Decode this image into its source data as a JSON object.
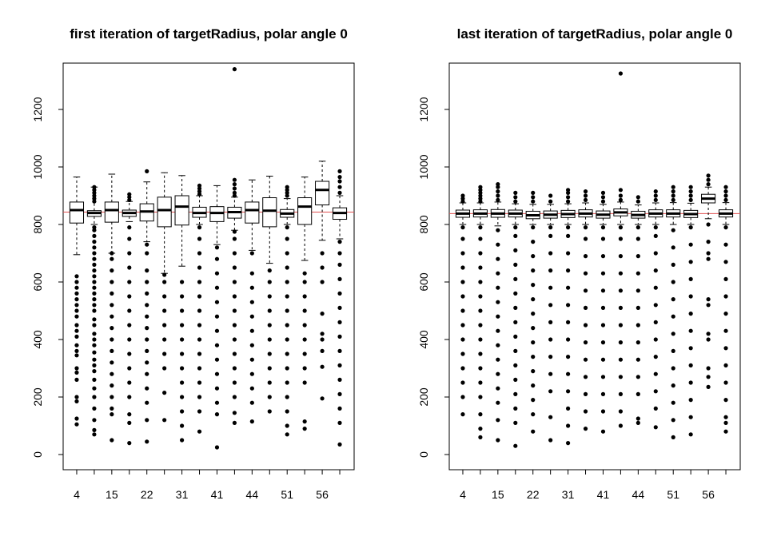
{
  "chart_data": [
    {
      "type": "boxplot",
      "title": "first iteration of targetRadius, polar angle 0",
      "xlabel": "",
      "ylabel": "",
      "ylim": [
        0,
        1350
      ],
      "yticks": [
        0,
        200,
        400,
        600,
        800,
        1000,
        1200
      ],
      "categories": [
        "4",
        "",
        "15",
        "",
        "22",
        "",
        "31",
        "",
        "41",
        "",
        "44",
        "",
        "51",
        "",
        "56",
        ""
      ],
      "xtick_labels": [
        "4",
        "15",
        "22",
        "31",
        "41",
        "44",
        "51",
        "56"
      ],
      "reference_line": {
        "y": 843,
        "color": "#e05050"
      },
      "boxes": [
        {
          "min": 695,
          "q1": 805,
          "median": 850,
          "q3": 878,
          "max": 965,
          "outliers": [
            105,
            125,
            185,
            200,
            260,
            285,
            300,
            345,
            360,
            380,
            410,
            430,
            450,
            480,
            500,
            520,
            540,
            560,
            580,
            600,
            620
          ]
        },
        {
          "min": 800,
          "q1": 828,
          "median": 840,
          "q3": 848,
          "max": 930,
          "outliers": [
            70,
            85,
            120,
            160,
            200,
            230,
            260,
            290,
            310,
            330,
            355,
            380,
            400,
            420,
            450,
            470,
            500,
            520,
            540,
            560,
            580,
            600,
            620,
            640,
            660,
            680,
            700,
            720,
            740,
            760,
            780,
            790,
            880,
            890,
            900,
            910,
            920,
            930
          ]
        },
        {
          "min": 700,
          "q1": 808,
          "median": 850,
          "q3": 878,
          "max": 975,
          "outliers": [
            50,
            140,
            160,
            200,
            240,
            280,
            320,
            360,
            400,
            440,
            480,
            520,
            560,
            600,
            640,
            680,
            700
          ]
        },
        {
          "min": 810,
          "q1": 828,
          "median": 840,
          "q3": 850,
          "max": 880,
          "outliers": [
            40,
            110,
            140,
            200,
            250,
            300,
            350,
            400,
            450,
            500,
            550,
            600,
            650,
            700,
            750,
            790,
            885,
            895,
            905
          ]
        },
        {
          "min": 740,
          "q1": 812,
          "median": 845,
          "q3": 872,
          "max": 948,
          "outliers": [
            45,
            120,
            180,
            230,
            280,
            320,
            360,
            400,
            440,
            480,
            520,
            560,
            600,
            640,
            700,
            730,
            985
          ]
        },
        {
          "min": 630,
          "q1": 792,
          "median": 850,
          "q3": 895,
          "max": 980,
          "outliers": [
            120,
            215,
            300,
            350,
            400,
            450,
            500,
            550,
            600,
            625
          ]
        },
        {
          "min": 655,
          "q1": 798,
          "median": 862,
          "q3": 900,
          "max": 970,
          "outliers": [
            50,
            100,
            150,
            200,
            250,
            300,
            350,
            400,
            450,
            500,
            550,
            600
          ]
        },
        {
          "min": 800,
          "q1": 825,
          "median": 840,
          "q3": 860,
          "max": 900,
          "outliers": [
            80,
            150,
            200,
            250,
            300,
            350,
            400,
            450,
            500,
            550,
            600,
            650,
            700,
            750,
            790,
            905,
            915,
            925,
            935
          ]
        },
        {
          "min": 730,
          "q1": 810,
          "median": 840,
          "q3": 862,
          "max": 935,
          "outliers": [
            25,
            140,
            180,
            230,
            280,
            330,
            380,
            430,
            480,
            530,
            580,
            630,
            680,
            720
          ]
        },
        {
          "min": 780,
          "q1": 822,
          "median": 843,
          "q3": 860,
          "max": 895,
          "outliers": [
            110,
            145,
            200,
            250,
            300,
            350,
            400,
            450,
            500,
            550,
            600,
            650,
            700,
            750,
            775,
            900,
            910,
            925,
            940,
            955,
            1340
          ]
        },
        {
          "min": 710,
          "q1": 805,
          "median": 850,
          "q3": 878,
          "max": 955,
          "outliers": [
            115,
            180,
            230,
            280,
            330,
            380,
            430,
            480,
            530,
            580,
            630,
            700
          ]
        },
        {
          "min": 665,
          "q1": 792,
          "median": 848,
          "q3": 893,
          "max": 968,
          "outliers": [
            150,
            200,
            250,
            300,
            350,
            400,
            450,
            500,
            550,
            600,
            640
          ]
        },
        {
          "min": 800,
          "q1": 825,
          "median": 838,
          "q3": 852,
          "max": 890,
          "outliers": [
            70,
            100,
            150,
            200,
            250,
            300,
            350,
            400,
            450,
            500,
            550,
            600,
            650,
            700,
            750,
            790,
            900,
            910,
            920,
            930
          ]
        },
        {
          "min": 675,
          "q1": 800,
          "median": 862,
          "q3": 893,
          "max": 965,
          "outliers": [
            90,
            115,
            250,
            300,
            350,
            400,
            450,
            500,
            550,
            600,
            630
          ]
        },
        {
          "min": 745,
          "q1": 868,
          "median": 920,
          "q3": 950,
          "max": 1020,
          "outliers": [
            195,
            305,
            360,
            400,
            420,
            490,
            600,
            650,
            700
          ]
        },
        {
          "min": 750,
          "q1": 818,
          "median": 840,
          "q3": 858,
          "max": 900,
          "outliers": [
            35,
            110,
            160,
            210,
            260,
            310,
            360,
            410,
            460,
            510,
            560,
            610,
            660,
            700,
            740,
            910,
            930,
            950,
            965,
            985
          ]
        }
      ]
    },
    {
      "type": "boxplot",
      "title": "last iteration of targetRadius, polar angle 0",
      "xlabel": "",
      "ylabel": "",
      "ylim": [
        0,
        1350
      ],
      "yticks": [
        0,
        200,
        400,
        600,
        800,
        1000,
        1200
      ],
      "categories": [
        "4",
        "",
        "15",
        "",
        "22",
        "",
        "31",
        "",
        "41",
        "",
        "44",
        "",
        "51",
        "",
        "56",
        ""
      ],
      "xtick_labels": [
        "4",
        "15",
        "22",
        "31",
        "41",
        "44",
        "51",
        "56"
      ],
      "reference_line": {
        "y": 838,
        "color": "#e05050"
      },
      "boxes": [
        {
          "min": 800,
          "q1": 825,
          "median": 838,
          "q3": 850,
          "max": 875,
          "outliers": [
            140,
            200,
            250,
            300,
            350,
            400,
            450,
            500,
            550,
            600,
            650,
            700,
            750,
            790,
            880,
            890,
            900
          ]
        },
        {
          "min": 800,
          "q1": 826,
          "median": 838,
          "q3": 851,
          "max": 875,
          "outliers": [
            60,
            90,
            140,
            200,
            250,
            300,
            350,
            400,
            450,
            500,
            550,
            600,
            650,
            700,
            750,
            790,
            880,
            890,
            900,
            910,
            920,
            930
          ]
        },
        {
          "min": 795,
          "q1": 825,
          "median": 838,
          "q3": 852,
          "max": 878,
          "outliers": [
            50,
            120,
            180,
            230,
            280,
            330,
            380,
            430,
            480,
            530,
            580,
            630,
            680,
            730,
            780,
            885,
            900,
            915,
            930,
            940
          ]
        },
        {
          "min": 800,
          "q1": 826,
          "median": 838,
          "q3": 850,
          "max": 872,
          "outliers": [
            30,
            110,
            160,
            210,
            260,
            310,
            360,
            410,
            460,
            510,
            560,
            610,
            660,
            710,
            760,
            790,
            880,
            895,
            910
          ]
        },
        {
          "min": 800,
          "q1": 820,
          "median": 832,
          "q3": 846,
          "max": 870,
          "outliers": [
            80,
            140,
            190,
            240,
            290,
            340,
            390,
            440,
            490,
            540,
            590,
            640,
            690,
            740,
            790,
            880,
            895,
            910
          ]
        },
        {
          "min": 800,
          "q1": 822,
          "median": 834,
          "q3": 847,
          "max": 870,
          "outliers": [
            50,
            130,
            220,
            280,
            340,
            400,
            460,
            520,
            580,
            640,
            700,
            760,
            790,
            880,
            900
          ]
        },
        {
          "min": 800,
          "q1": 824,
          "median": 836,
          "q3": 849,
          "max": 872,
          "outliers": [
            40,
            100,
            160,
            220,
            280,
            340,
            400,
            460,
            520,
            580,
            640,
            700,
            760,
            790,
            880,
            895,
            910,
            920
          ]
        },
        {
          "min": 800,
          "q1": 826,
          "median": 838,
          "q3": 851,
          "max": 875,
          "outliers": [
            90,
            150,
            210,
            270,
            330,
            390,
            450,
            510,
            570,
            630,
            690,
            750,
            790,
            885,
            900,
            915
          ]
        },
        {
          "min": 800,
          "q1": 822,
          "median": 834,
          "q3": 847,
          "max": 870,
          "outliers": [
            80,
            150,
            210,
            270,
            330,
            390,
            450,
            510,
            570,
            630,
            690,
            750,
            790,
            880,
            895,
            910
          ]
        },
        {
          "min": 800,
          "q1": 830,
          "median": 842,
          "q3": 854,
          "max": 878,
          "outliers": [
            100,
            150,
            210,
            270,
            330,
            390,
            450,
            510,
            570,
            630,
            690,
            750,
            790,
            885,
            900,
            920,
            1325
          ]
        },
        {
          "min": 800,
          "q1": 822,
          "median": 833,
          "q3": 846,
          "max": 868,
          "outliers": [
            110,
            125,
            210,
            270,
            330,
            390,
            450,
            510,
            570,
            630,
            690,
            750,
            790,
            880,
            895
          ]
        },
        {
          "min": 800,
          "q1": 826,
          "median": 838,
          "q3": 851,
          "max": 875,
          "outliers": [
            95,
            160,
            220,
            280,
            340,
            400,
            460,
            520,
            580,
            640,
            700,
            760,
            790,
            885,
            900,
            915
          ]
        },
        {
          "min": 800,
          "q1": 826,
          "median": 838,
          "q3": 851,
          "max": 876,
          "outliers": [
            60,
            120,
            180,
            240,
            300,
            360,
            420,
            480,
            540,
            600,
            660,
            720,
            780,
            885,
            900,
            915,
            930
          ]
        },
        {
          "min": 800,
          "q1": 824,
          "median": 836,
          "q3": 849,
          "max": 874,
          "outliers": [
            70,
            130,
            190,
            250,
            310,
            370,
            430,
            490,
            550,
            610,
            670,
            730,
            790,
            885,
            900,
            915,
            930
          ]
        },
        {
          "min": 820,
          "q1": 875,
          "median": 890,
          "q3": 905,
          "max": 930,
          "outliers": [
            235,
            270,
            300,
            400,
            420,
            520,
            540,
            680,
            700,
            740,
            800,
            940,
            955,
            970
          ]
        },
        {
          "min": 800,
          "q1": 826,
          "median": 838,
          "q3": 851,
          "max": 876,
          "outliers": [
            80,
            110,
            130,
            190,
            250,
            310,
            370,
            430,
            490,
            550,
            610,
            670,
            730,
            790,
            885,
            900,
            915,
            930
          ]
        }
      ]
    }
  ]
}
